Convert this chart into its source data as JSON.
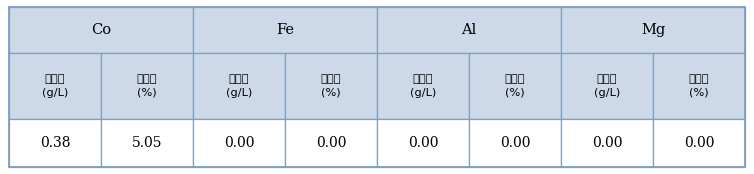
{
  "header1": [
    "Co",
    "Fe",
    "Al",
    "Mg"
  ],
  "header2": [
    "제거량\n(g/L)",
    "제거율\n(%)",
    "제거량\n(g/L)",
    "제거율\n(%)",
    "제거량\n(g/L)",
    "제거율\n(%)",
    "제거량\n(g/L)",
    "제거율\n(%)"
  ],
  "data_row": [
    "0.38",
    "5.05",
    "0.00",
    "0.00",
    "0.00",
    "0.00",
    "0.00",
    "0.00"
  ],
  "header_bg": "#cdd9e8",
  "cell_bg": "#ffffff",
  "border_color": "#7f9fbf",
  "text_color": "#000000",
  "figsize": [
    7.54,
    1.74
  ],
  "dpi": 100
}
